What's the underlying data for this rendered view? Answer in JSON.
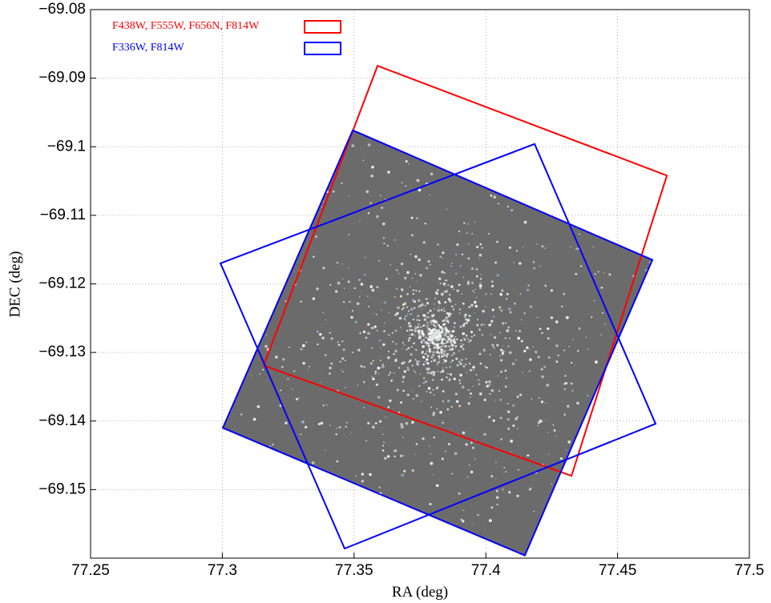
{
  "chart_data": {
    "type": "footprint",
    "x_label": "RA (deg)",
    "y_label": "DEC (deg)",
    "xlim": [
      77.25,
      77.5
    ],
    "xticks": [
      77.25,
      77.3,
      77.35,
      77.4,
      77.45,
      77.5
    ],
    "ylim": [
      -69.16,
      -69.08
    ],
    "yticks": [
      {
        "value": -69.08,
        "label": "−69.08"
      },
      {
        "value": -69.09,
        "label": "−69.09"
      },
      {
        "value": -69.1,
        "label": "−69.1"
      },
      {
        "value": -69.11,
        "label": "−69.11"
      },
      {
        "value": -69.12,
        "label": "−69.12"
      },
      {
        "value": -69.13,
        "label": "−69.13"
      },
      {
        "value": -69.14,
        "label": "−69.14"
      },
      {
        "value": -69.15,
        "label": "−69.15"
      }
    ],
    "grid": true,
    "legend": "upper left",
    "series": [
      {
        "name": "F438W, F555W, F656N, F814W",
        "color": "#ff0000",
        "polygons": [
          {
            "x": [
              77.3589,
              77.4687,
              77.4325,
              77.3157
            ],
            "y": [
              -69.0882,
              -69.1042,
              -69.148,
              -69.1319
            ]
          }
        ]
      },
      {
        "name": "F336W, F814W",
        "color": "#0000ff",
        "polygons": [
          {
            "x": [
              77.4185,
              77.4644,
              77.3464,
              77.2993
            ],
            "y": [
              -69.0996,
              -69.1404,
              -69.1586,
              -69.117
            ]
          },
          {
            "x": [
              77.3495,
              77.4632,
              77.4148,
              77.3002
            ],
            "y": [
              -69.0976,
              -69.1165,
              -69.1596,
              -69.141
            ]
          }
        ]
      }
    ]
  }
}
